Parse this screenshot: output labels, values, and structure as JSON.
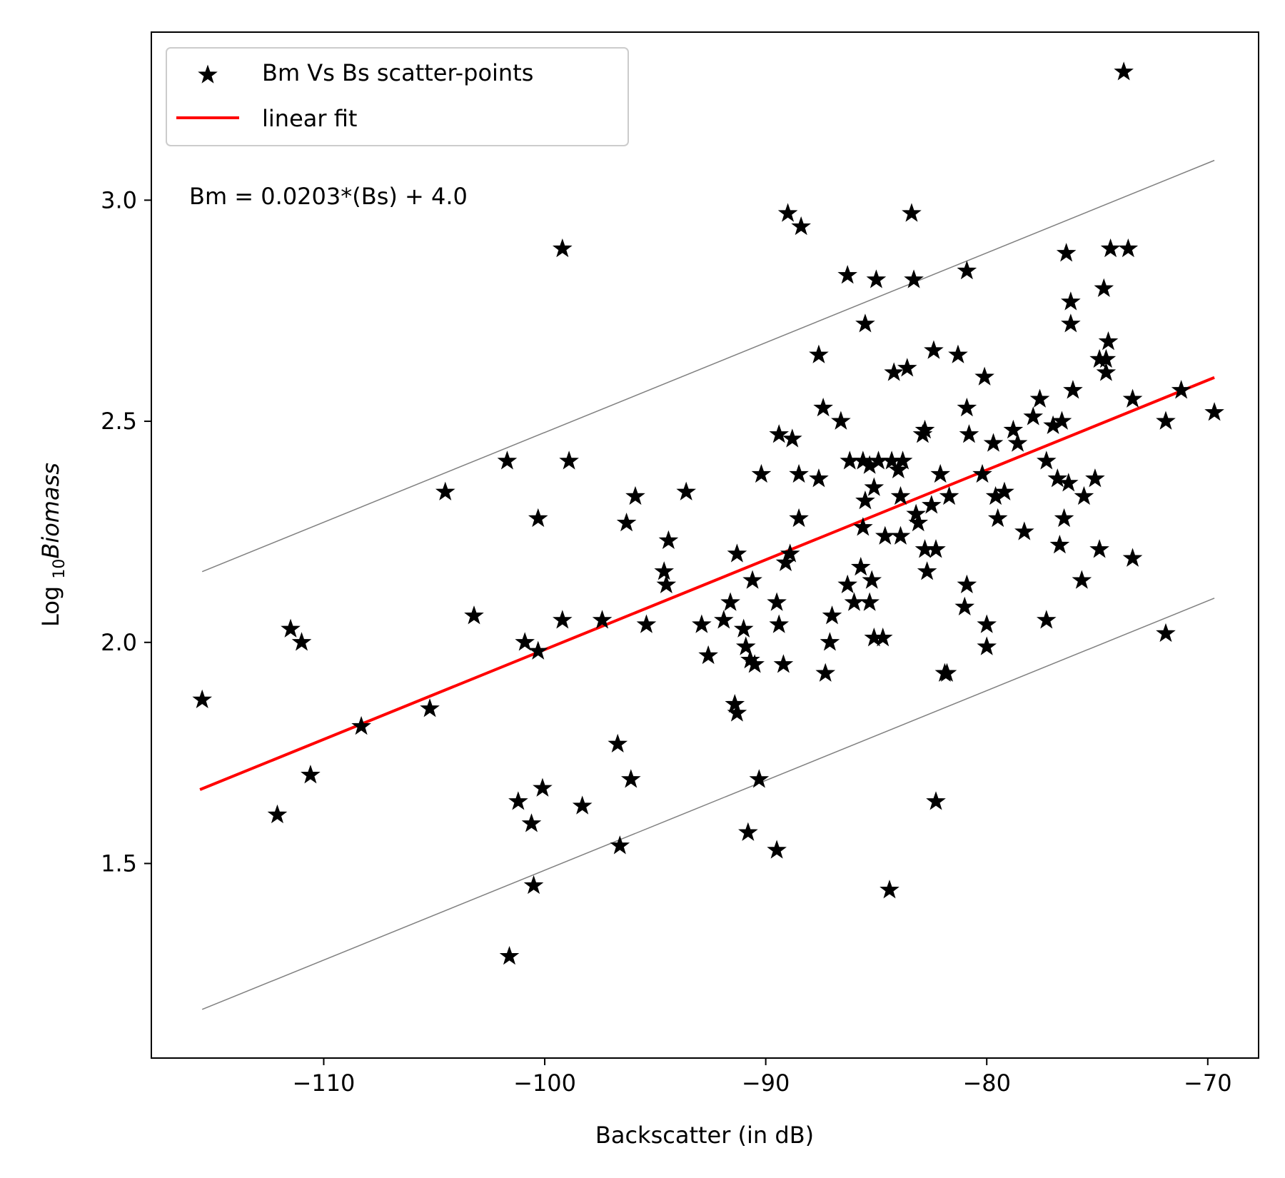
{
  "chart_data": {
    "type": "scatter",
    "xlabel": "Backscatter (in dB)",
    "ylabel": {
      "prefix": "Log ",
      "subscript": "10",
      "italic": "Biomass"
    },
    "xlim": [
      -117.8,
      -67.7
    ],
    "ylim": [
      1.06,
      3.38
    ],
    "xticks": [
      -110,
      -100,
      -90,
      -80,
      -70
    ],
    "yticks": [
      1.5,
      2.0,
      2.5,
      3.0
    ],
    "annotation": "Bm = 0.0203*(Bs) + 4.0",
    "legend": {
      "position": "top-left",
      "entries": [
        {
          "label": "Bm Vs Bs scatter-points",
          "kind": "marker",
          "marker": "star",
          "color": "#000000"
        },
        {
          "label": "linear fit",
          "kind": "line",
          "color": "#ff0000"
        }
      ]
    },
    "series": [
      {
        "name": "Bm Vs Bs scatter-points",
        "kind": "scatter",
        "marker": "star",
        "color": "#000000",
        "points": [
          [
            -115.5,
            1.87
          ],
          [
            -112.1,
            1.61
          ],
          [
            -111.5,
            2.03
          ],
          [
            -111.0,
            2.0
          ],
          [
            -110.6,
            1.7
          ],
          [
            -108.3,
            1.81
          ],
          [
            -105.2,
            1.85
          ],
          [
            -104.5,
            2.34
          ],
          [
            -103.2,
            2.06
          ],
          [
            -101.7,
            2.41
          ],
          [
            -101.6,
            1.29
          ],
          [
            -101.2,
            1.64
          ],
          [
            -100.9,
            2.0
          ],
          [
            -100.6,
            1.59
          ],
          [
            -100.5,
            1.45
          ],
          [
            -100.3,
            2.28
          ],
          [
            -100.3,
            1.98
          ],
          [
            -100.1,
            1.67
          ],
          [
            -99.2,
            2.89
          ],
          [
            -99.2,
            2.05
          ],
          [
            -98.9,
            2.41
          ],
          [
            -98.3,
            1.63
          ],
          [
            -97.4,
            2.05
          ],
          [
            -96.7,
            1.77
          ],
          [
            -96.6,
            1.54
          ],
          [
            -96.3,
            2.27
          ],
          [
            -96.1,
            1.69
          ],
          [
            -95.9,
            2.33
          ],
          [
            -95.4,
            2.04
          ],
          [
            -94.6,
            2.16
          ],
          [
            -94.5,
            2.13
          ],
          [
            -94.4,
            2.23
          ],
          [
            -93.6,
            2.34
          ],
          [
            -92.9,
            2.04
          ],
          [
            -92.6,
            1.97
          ],
          [
            -91.9,
            2.05
          ],
          [
            -91.6,
            2.09
          ],
          [
            -91.3,
            2.2
          ],
          [
            -91.4,
            1.86
          ],
          [
            -91.3,
            1.84
          ],
          [
            -91.0,
            2.03
          ],
          [
            -90.9,
            1.99
          ],
          [
            -90.8,
            1.57
          ],
          [
            -90.7,
            1.96
          ],
          [
            -90.6,
            2.14
          ],
          [
            -90.5,
            1.95
          ],
          [
            -90.3,
            1.69
          ],
          [
            -90.2,
            2.38
          ],
          [
            -89.5,
            2.09
          ],
          [
            -89.5,
            1.53
          ],
          [
            -89.4,
            2.47
          ],
          [
            -89.4,
            2.04
          ],
          [
            -89.2,
            1.95
          ],
          [
            -89.1,
            2.18
          ],
          [
            -89.0,
            2.97
          ],
          [
            -88.9,
            2.2
          ],
          [
            -88.8,
            2.46
          ],
          [
            -88.5,
            2.38
          ],
          [
            -88.5,
            2.28
          ],
          [
            -88.4,
            2.94
          ],
          [
            -87.6,
            2.65
          ],
          [
            -87.6,
            2.37
          ],
          [
            -87.4,
            2.53
          ],
          [
            -87.3,
            1.93
          ],
          [
            -87.1,
            2.0
          ],
          [
            -87.0,
            2.06
          ],
          [
            -86.6,
            2.5
          ],
          [
            -86.3,
            2.83
          ],
          [
            -86.3,
            2.13
          ],
          [
            -86.2,
            2.41
          ],
          [
            -86.0,
            2.09
          ],
          [
            -85.7,
            2.17
          ],
          [
            -85.6,
            2.41
          ],
          [
            -85.6,
            2.26
          ],
          [
            -85.5,
            2.72
          ],
          [
            -85.5,
            2.32
          ],
          [
            -85.3,
            2.4
          ],
          [
            -85.3,
            2.09
          ],
          [
            -85.2,
            2.14
          ],
          [
            -85.1,
            2.35
          ],
          [
            -85.1,
            2.01
          ],
          [
            -85.0,
            2.82
          ],
          [
            -84.9,
            2.41
          ],
          [
            -84.7,
            2.01
          ],
          [
            -84.6,
            2.24
          ],
          [
            -84.4,
            1.44
          ],
          [
            -84.3,
            2.41
          ],
          [
            -84.2,
            2.61
          ],
          [
            -84.0,
            2.39
          ],
          [
            -83.9,
            2.33
          ],
          [
            -83.9,
            2.24
          ],
          [
            -83.8,
            2.41
          ],
          [
            -83.6,
            2.62
          ],
          [
            -83.4,
            2.97
          ],
          [
            -83.3,
            2.82
          ],
          [
            -83.2,
            2.29
          ],
          [
            -83.1,
            2.27
          ],
          [
            -82.9,
            2.47
          ],
          [
            -82.8,
            2.48
          ],
          [
            -82.8,
            2.21
          ],
          [
            -82.7,
            2.16
          ],
          [
            -82.5,
            2.31
          ],
          [
            -82.4,
            2.66
          ],
          [
            -82.3,
            2.21
          ],
          [
            -82.3,
            1.64
          ],
          [
            -82.1,
            2.38
          ],
          [
            -81.9,
            1.93
          ],
          [
            -81.8,
            1.93
          ],
          [
            -81.7,
            2.33
          ],
          [
            -81.3,
            2.65
          ],
          [
            -81.0,
            2.08
          ],
          [
            -80.9,
            2.84
          ],
          [
            -80.9,
            2.53
          ],
          [
            -80.9,
            2.13
          ],
          [
            -80.8,
            2.47
          ],
          [
            -80.2,
            2.38
          ],
          [
            -80.1,
            2.6
          ],
          [
            -80.0,
            2.04
          ],
          [
            -80.0,
            1.99
          ],
          [
            -79.7,
            2.45
          ],
          [
            -79.6,
            2.33
          ],
          [
            -79.5,
            2.28
          ],
          [
            -79.2,
            2.34
          ],
          [
            -78.8,
            2.48
          ],
          [
            -78.6,
            2.45
          ],
          [
            -78.3,
            2.25
          ],
          [
            -77.9,
            2.51
          ],
          [
            -77.6,
            2.55
          ],
          [
            -77.3,
            2.41
          ],
          [
            -77.3,
            2.05
          ],
          [
            -77.0,
            2.49
          ],
          [
            -76.8,
            2.37
          ],
          [
            -76.7,
            2.22
          ],
          [
            -76.6,
            2.5
          ],
          [
            -76.5,
            2.28
          ],
          [
            -76.4,
            2.88
          ],
          [
            -76.3,
            2.36
          ],
          [
            -76.2,
            2.72
          ],
          [
            -76.2,
            2.77
          ],
          [
            -76.1,
            2.57
          ],
          [
            -75.7,
            2.14
          ],
          [
            -75.6,
            2.33
          ],
          [
            -75.1,
            2.37
          ],
          [
            -74.9,
            2.21
          ],
          [
            -74.9,
            2.64
          ],
          [
            -74.7,
            2.8
          ],
          [
            -74.6,
            2.61
          ],
          [
            -74.6,
            2.64
          ],
          [
            -74.5,
            2.68
          ],
          [
            -74.4,
            2.89
          ],
          [
            -73.8,
            3.29
          ],
          [
            -73.6,
            2.89
          ],
          [
            -73.4,
            2.55
          ],
          [
            -73.4,
            2.19
          ],
          [
            -71.9,
            2.5
          ],
          [
            -71.9,
            2.02
          ],
          [
            -71.2,
            2.57
          ],
          [
            -69.7,
            2.52
          ]
        ]
      },
      {
        "name": "linear fit",
        "kind": "line",
        "color": "#ff0000",
        "points": [
          [
            -115.6,
            1.667
          ],
          [
            -69.7,
            2.599
          ]
        ]
      },
      {
        "kind": "line",
        "color": "#808080",
        "points": [
          [
            -115.5,
            2.16
          ],
          [
            -69.7,
            3.09
          ]
        ]
      },
      {
        "kind": "line",
        "color": "#808080",
        "points": [
          [
            -115.5,
            1.17
          ],
          [
            -69.7,
            2.1
          ]
        ]
      }
    ]
  }
}
